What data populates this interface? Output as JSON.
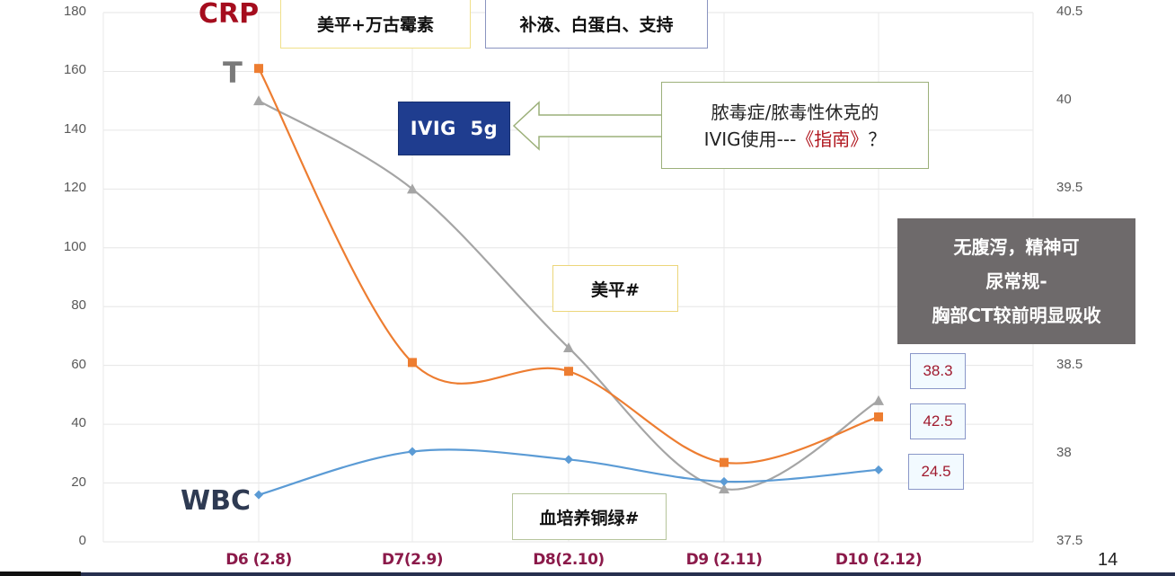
{
  "slide": {
    "page_number": "14"
  },
  "chart_data": {
    "type": "line",
    "title": "",
    "categories": [
      "D6 (2.8)",
      "D7(2.9)",
      "D8(2.10)",
      "D9 (2.11)",
      "D10 (2.12)"
    ],
    "left_axis": {
      "min": 0,
      "max": 180,
      "step": 20,
      "ticks": [
        "180",
        "160",
        "140",
        "120",
        "100",
        "80",
        "60",
        "40",
        "20",
        "0"
      ]
    },
    "right_axis": {
      "min": 37.5,
      "max": 40.5,
      "step": 0.5,
      "ticks": [
        "40.5",
        "40",
        "39.5",
        "39",
        "38.5",
        "38",
        "37.5"
      ]
    },
    "grid": true,
    "series": [
      {
        "name": "CRP",
        "axis": "left",
        "marker": "square",
        "color": "#ed7d31",
        "values": [
          161,
          61,
          58,
          27,
          42.5
        ]
      },
      {
        "name": "WBC",
        "axis": "left",
        "marker": "diamond",
        "color": "#5b9bd5",
        "values": [
          16,
          30.7,
          28,
          20.5,
          24.5
        ]
      },
      {
        "name": "T",
        "axis": "right",
        "marker": "triangle",
        "color": "#a5a5a5",
        "values": [
          40.0,
          39.5,
          38.6,
          37.8,
          38.3
        ]
      }
    ],
    "series_labels": {
      "crp": "CRP",
      "t": "T",
      "wbc": "WBC"
    },
    "annotations": [
      "美平+万古霉素",
      "补液、白蛋白、支持",
      "IVIG  5g",
      "脓毒症/脓毒性休克的IVIG使用---《指南》？",
      "美平#",
      "血培养铜绿#",
      "无腹泻，精神可 / 尿常规- / 胸部CT较前明显吸收",
      "38.3",
      "42.5",
      "24.5"
    ]
  },
  "annotations": {
    "treatment1": "美平+万古霉素",
    "treatment2": "补液、白蛋白、支持",
    "ivig": "IVIG  5g",
    "guide_line1": "脓毒症/脓毒性休克的",
    "guide_line2_prefix": "IVIG使用---",
    "guide_line2_red": "《指南》",
    "guide_line2_suffix": "？",
    "meropenem_stop": "美平#",
    "blood_culture": "血培养铜绿#",
    "summary_line1": "无腹泻，精神可",
    "summary_line2": "尿常规-",
    "summary_line3": "胸部CT较前明显吸收",
    "final_t": "38.3",
    "final_crp": "42.5",
    "final_wbc": "24.5"
  },
  "colors": {
    "crp": "#ed7d31",
    "wbc": "#5b9bd5",
    "t": "#a5a5a5",
    "crp_label": "#a50d1e",
    "t_label": "#7a7a7a",
    "wbc_label": "#2e3a52",
    "xlabel": "#8b1a4a",
    "ivig_bg": "#1f3d8f",
    "summary_bg": "#6e6a6b"
  }
}
